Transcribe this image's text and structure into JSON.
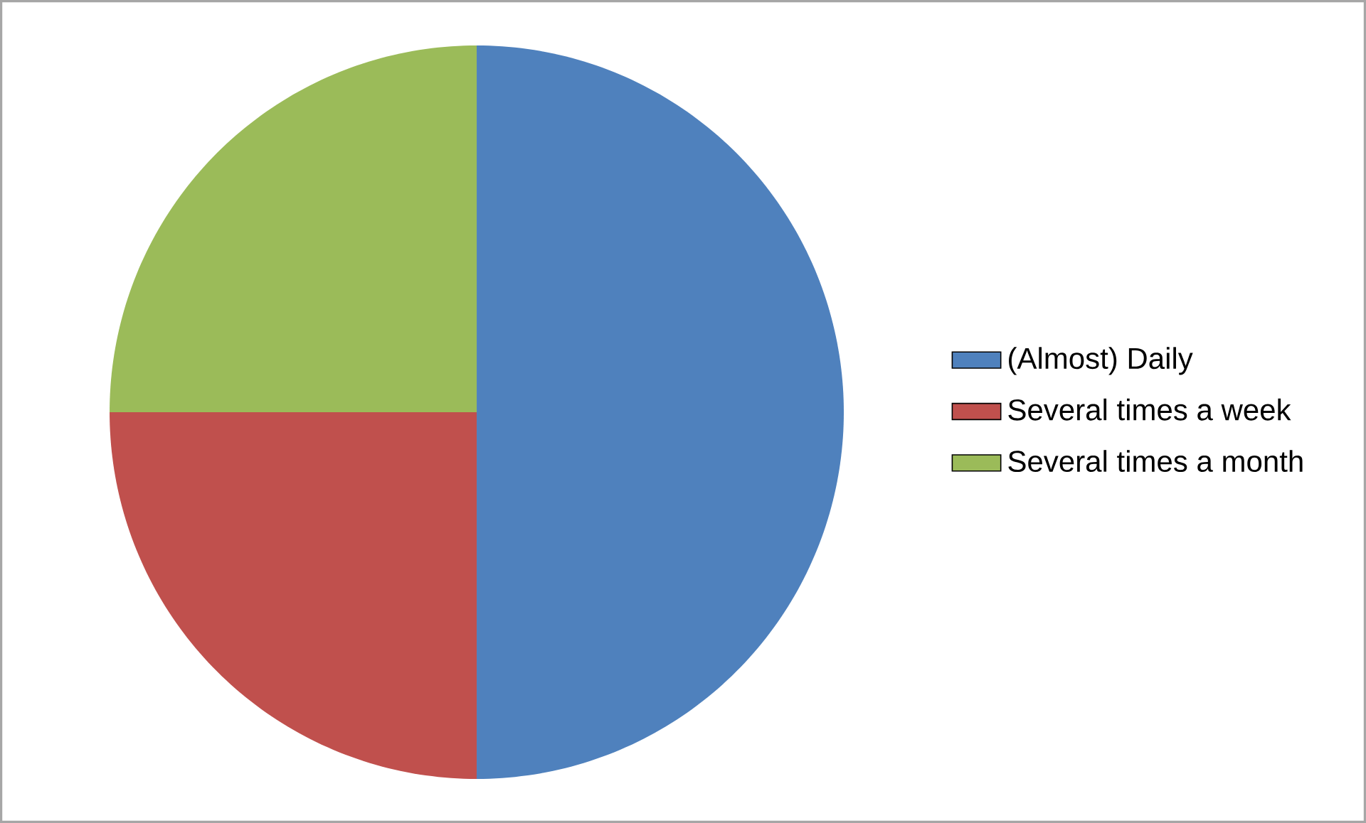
{
  "chart_data": {
    "type": "pie",
    "categories": [
      "(Almost) Daily",
      "Several times a week",
      "Several times a month"
    ],
    "values": [
      50,
      25,
      25
    ],
    "colors": [
      "#4f81bd",
      "#c0504d",
      "#9bbb59"
    ],
    "legend": "right"
  }
}
